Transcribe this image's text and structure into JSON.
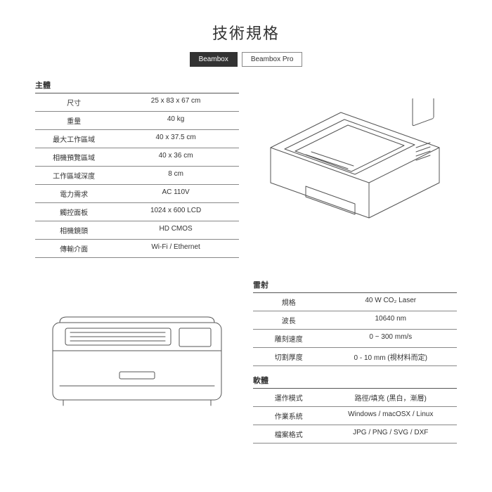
{
  "title": "技術規格",
  "tabs": {
    "beambox": "Beambox",
    "beambox_pro": "Beambox Pro"
  },
  "body_section": {
    "header": "主體",
    "rows": [
      {
        "label": "尺寸",
        "value": "25 x 83 x 67 cm"
      },
      {
        "label": "重量",
        "value": "40 kg"
      },
      {
        "label": "最大工作區域",
        "value": "40 x 37.5 cm"
      },
      {
        "label": "相機預覽區域",
        "value": "40 x 36 cm"
      },
      {
        "label": "工作區域深度",
        "value": "8 cm"
      },
      {
        "label": "電力需求",
        "value": "AC 110V"
      },
      {
        "label": "觸控面板",
        "value": "1024 x 600 LCD"
      },
      {
        "label": "相機鏡頭",
        "value": "HD CMOS"
      },
      {
        "label": "傳輸介面",
        "value": "Wi-Fi / Ethernet"
      }
    ]
  },
  "laser_section": {
    "header": "雷射",
    "rows": [
      {
        "label": "規格",
        "value": "40 W  CO₂ Laser"
      },
      {
        "label": "波長",
        "value": "10640 nm"
      },
      {
        "label": "雕刻速度",
        "value": "0 ~ 300 mm/s"
      },
      {
        "label": "切割厚度",
        "value": "0 - 10 mm (視材料而定)"
      }
    ]
  },
  "software_section": {
    "header": "軟體",
    "rows": [
      {
        "label": "運作模式",
        "value": "路徑/填充 (黑白，漸層)"
      },
      {
        "label": "作業系統",
        "value": "Windows / macOSX / Linux"
      },
      {
        "label": "檔案格式",
        "value": "JPG / PNG / SVG / DXF"
      }
    ]
  },
  "colors": {
    "line": "#555555",
    "border": "#888888",
    "text": "#333333",
    "bg": "#ffffff"
  }
}
